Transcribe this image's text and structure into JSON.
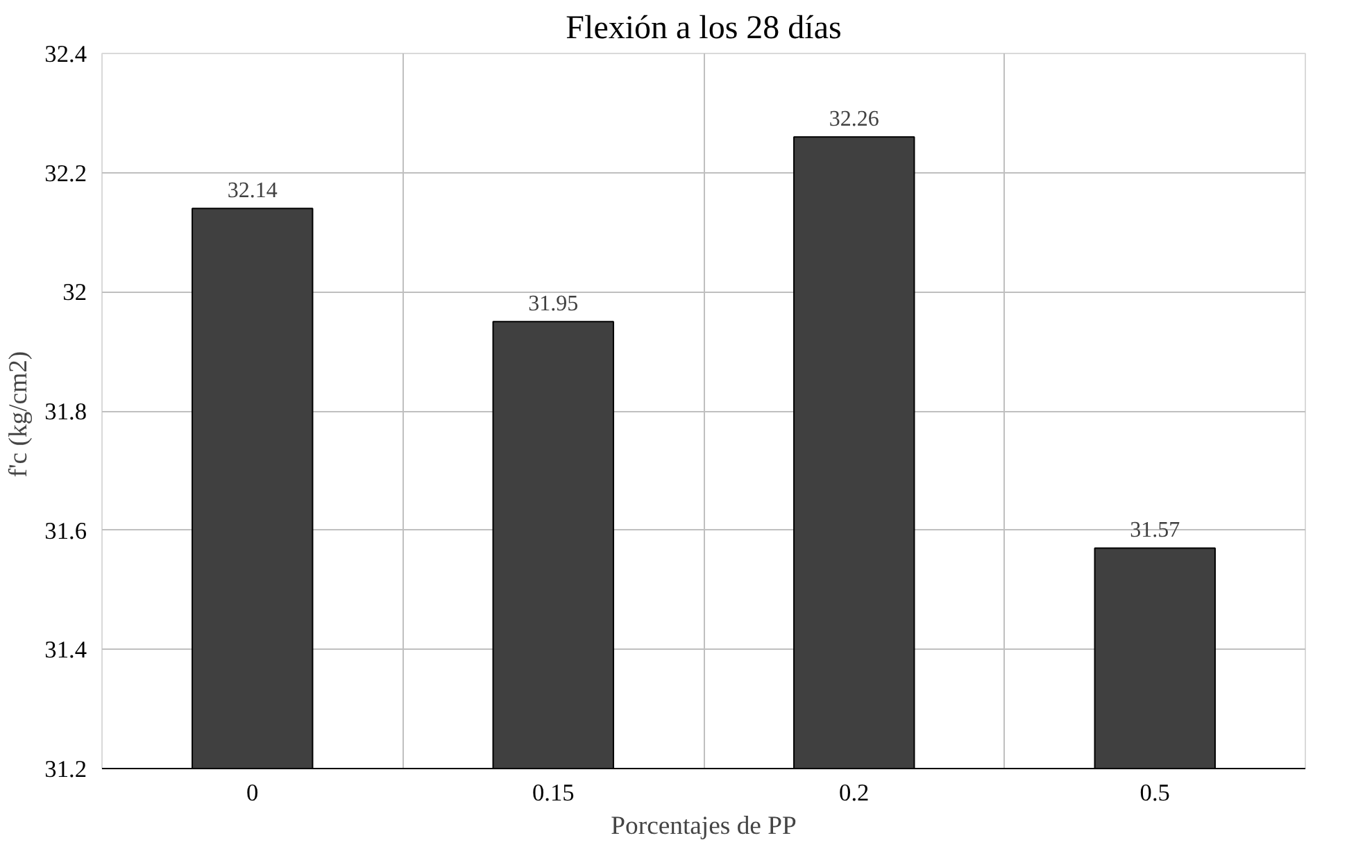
{
  "chart_data": {
    "type": "bar",
    "title": "Flexión a los 28 días",
    "xlabel": "Porcentajes de PP",
    "ylabel": "f'c  (kg/cm2)",
    "categories": [
      "0",
      "0.15",
      "0.2",
      "0.5"
    ],
    "values": [
      32.14,
      31.95,
      32.26,
      31.57
    ],
    "color": "#404040",
    "ylim": [
      31.2,
      32.4
    ],
    "yticks": [
      31.2,
      31.4,
      31.6,
      31.8,
      {
        "value": 32,
        "label": "32"
      },
      32.2,
      32.4
    ],
    "grid": true,
    "data_labels": true
  }
}
